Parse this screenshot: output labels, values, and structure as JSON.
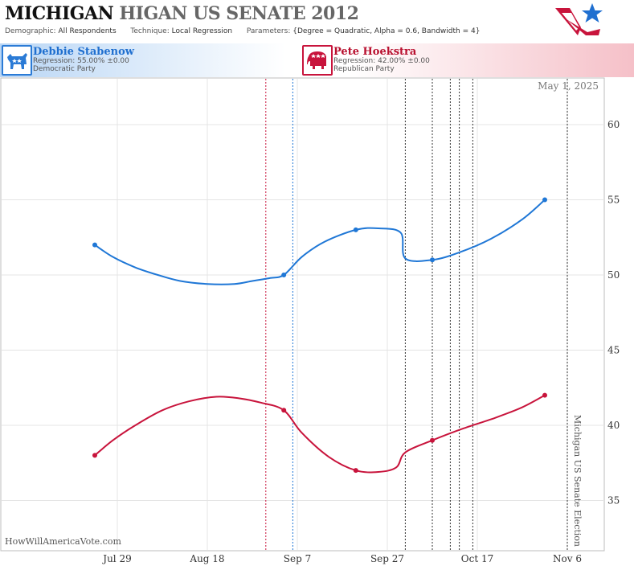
{
  "header": {
    "title_part1": "MICHIGAN",
    "title_part2": "HIGAN US SENATE 2012",
    "demographic_label": "Demographic:",
    "demographic_value": "All Respondents",
    "technique_label": "Technique:",
    "technique_value": "Local Regression",
    "parameters_label": "Parameters:",
    "parameters_value": "{Degree = Quadratic, Alpha = 0.6, Bandwidth = 4}"
  },
  "candidates": [
    {
      "name": "Debbie Stabenow",
      "regression": "Regression: 55.00% ±0.00",
      "party": "Democratic Party",
      "color": "#1f77d6"
    },
    {
      "name": "Pete Hoekstra",
      "regression": "Regression: 42.00% ±0.00",
      "party": "Republican Party",
      "color": "#c8143c"
    }
  ],
  "chart_data": {
    "type": "line",
    "date_label": "May 1, 2025",
    "event_label": "Michigan US Senate Election",
    "watermark": "HowWillAmericaVote.com",
    "x_ticks": [
      "Jul 29",
      "Aug 18",
      "Sep 7",
      "Sep 27",
      "Oct 17",
      "Nov 6"
    ],
    "y_ticks": [
      "35",
      "40",
      "45",
      "50",
      "55",
      "60"
    ],
    "ylim": [
      32,
      63
    ],
    "grid": true,
    "series": [
      {
        "name": "Debbie Stabenow",
        "color": "#1f77d6",
        "polls": [
          {
            "date": "2012-07-24",
            "value": 52
          },
          {
            "date": "2012-09-04",
            "value": 50
          },
          {
            "date": "2012-09-20",
            "value": 53
          },
          {
            "date": "2012-10-07",
            "value": 51
          },
          {
            "date": "2012-11-01",
            "value": 55
          }
        ],
        "regression": [
          {
            "date": "2012-07-24",
            "value": 52.0
          },
          {
            "date": "2012-07-28",
            "value": 51.2
          },
          {
            "date": "2012-08-02",
            "value": 50.5
          },
          {
            "date": "2012-08-07",
            "value": 50.0
          },
          {
            "date": "2012-08-12",
            "value": 49.6
          },
          {
            "date": "2012-08-18",
            "value": 49.4
          },
          {
            "date": "2012-08-24",
            "value": 49.4
          },
          {
            "date": "2012-08-28",
            "value": 49.6
          },
          {
            "date": "2012-09-01",
            "value": 49.8
          },
          {
            "date": "2012-09-04",
            "value": 50.0
          },
          {
            "date": "2012-09-08",
            "value": 51.2
          },
          {
            "date": "2012-09-13",
            "value": 52.2
          },
          {
            "date": "2012-09-20",
            "value": 53.0
          },
          {
            "date": "2012-09-25",
            "value": 53.1
          },
          {
            "date": "2012-09-30",
            "value": 52.8
          },
          {
            "date": "2012-10-01",
            "value": 51.1
          },
          {
            "date": "2012-10-07",
            "value": 51.0
          },
          {
            "date": "2012-10-13",
            "value": 51.5
          },
          {
            "date": "2012-10-20",
            "value": 52.4
          },
          {
            "date": "2012-10-27",
            "value": 53.7
          },
          {
            "date": "2012-11-01",
            "value": 55.0
          }
        ]
      },
      {
        "name": "Pete Hoekstra",
        "color": "#c8143c",
        "polls": [
          {
            "date": "2012-07-24",
            "value": 38
          },
          {
            "date": "2012-09-04",
            "value": 41
          },
          {
            "date": "2012-09-20",
            "value": 37
          },
          {
            "date": "2012-10-07",
            "value": 39
          },
          {
            "date": "2012-11-01",
            "value": 42
          }
        ],
        "regression": [
          {
            "date": "2012-07-24",
            "value": 38.0
          },
          {
            "date": "2012-07-28",
            "value": 39.0
          },
          {
            "date": "2012-08-02",
            "value": 40.0
          },
          {
            "date": "2012-08-08",
            "value": 41.0
          },
          {
            "date": "2012-08-14",
            "value": 41.6
          },
          {
            "date": "2012-08-20",
            "value": 41.9
          },
          {
            "date": "2012-08-25",
            "value": 41.8
          },
          {
            "date": "2012-08-30",
            "value": 41.5
          },
          {
            "date": "2012-09-04",
            "value": 41.0
          },
          {
            "date": "2012-09-08",
            "value": 39.5
          },
          {
            "date": "2012-09-14",
            "value": 37.9
          },
          {
            "date": "2012-09-20",
            "value": 37.0
          },
          {
            "date": "2012-09-25",
            "value": 36.9
          },
          {
            "date": "2012-09-29",
            "value": 37.2
          },
          {
            "date": "2012-10-01",
            "value": 38.2
          },
          {
            "date": "2012-10-07",
            "value": 39.0
          },
          {
            "date": "2012-10-14",
            "value": 39.8
          },
          {
            "date": "2012-10-21",
            "value": 40.5
          },
          {
            "date": "2012-10-27",
            "value": 41.2
          },
          {
            "date": "2012-11-01",
            "value": 42.0
          }
        ]
      }
    ],
    "event_lines": [
      {
        "date": "2012-08-31",
        "color": "#c8143c"
      },
      {
        "date": "2012-09-06",
        "color": "#1f77d6"
      },
      {
        "date": "2012-10-01",
        "color": "#333333"
      },
      {
        "date": "2012-10-07",
        "color": "#333333"
      },
      {
        "date": "2012-10-11",
        "color": "#333333"
      },
      {
        "date": "2012-10-13",
        "color": "#333333"
      },
      {
        "date": "2012-10-16",
        "color": "#333333"
      },
      {
        "date": "2012-11-06",
        "color": "#333333"
      }
    ]
  }
}
